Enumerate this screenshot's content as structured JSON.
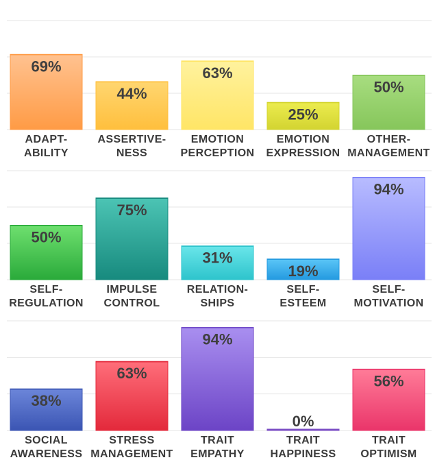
{
  "chart_data": [
    {
      "type": "bar",
      "categories": [
        "ADAPT-\nABILITY",
        "ASSERTIVE-\nNESS",
        "EMOTION\nPERCEPTION",
        "EMOTION\nEXPRESSION",
        "OTHER-\nMANAGEMENT"
      ],
      "values": [
        69,
        44,
        63,
        25,
        50
      ],
      "value_labels": [
        "69%",
        "44%",
        "63%",
        "25%",
        "50%"
      ],
      "colors": [
        [
          "#ffc290",
          "#ff9b45"
        ],
        [
          "#ffd670",
          "#ffbf3d"
        ],
        [
          "#fff29e",
          "#ffe566"
        ],
        [
          "#ecec4f",
          "#d3d431"
        ],
        [
          "#a8dd80",
          "#86c65b"
        ]
      ],
      "ylim": [
        0,
        100
      ],
      "grid": true
    },
    {
      "type": "bar",
      "categories": [
        "SELF-\nREGULATION",
        "IMPULSE\nCONTROL",
        "RELATION-\nSHIPS",
        "SELF-\nESTEEM",
        "SELF-\nMOTIVATION"
      ],
      "values": [
        50,
        75,
        31,
        19,
        94
      ],
      "value_labels": [
        "50%",
        "75%",
        "31%",
        "19%",
        "94%"
      ],
      "colors": [
        [
          "#6fe06f",
          "#2aaa3a"
        ],
        [
          "#4cc4b4",
          "#178a7e"
        ],
        [
          "#6ae6ea",
          "#2ec4cc"
        ],
        [
          "#5bc6f7",
          "#249ae0"
        ],
        [
          "#b8bcff",
          "#7a7ff7"
        ]
      ],
      "ylim": [
        0,
        100
      ],
      "grid": true
    },
    {
      "type": "bar",
      "categories": [
        "SOCIAL\nAWARENESS",
        "STRESS\nMANAGEMENT",
        "TRAIT\nEMPATHY",
        "TRAIT\nHAPPINESS",
        "TRAIT\nOPTIMISM"
      ],
      "values": [
        38,
        63,
        94,
        0,
        56
      ],
      "value_labels": [
        "38%",
        "63%",
        "94%",
        "0%",
        "56%"
      ],
      "colors": [
        [
          "#6c86da",
          "#3b55b3"
        ],
        [
          "#ff6e7a",
          "#e3293b"
        ],
        [
          "#a98ff0",
          "#6c44c6"
        ],
        [
          "#a07bdc",
          "#7a4cc4"
        ],
        [
          "#ff7c98",
          "#ea356a"
        ]
      ],
      "ylim": [
        0,
        100
      ],
      "grid": true
    }
  ]
}
